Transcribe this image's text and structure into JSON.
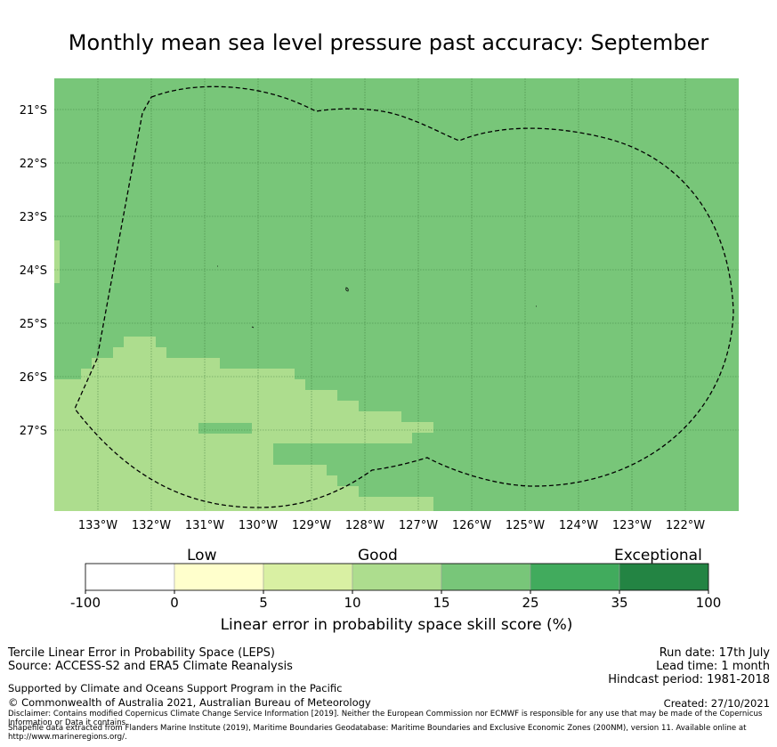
{
  "title": "Monthly mean sea level pressure past accuracy: September",
  "map": {
    "lat_labels": [
      "21°S",
      "22°S",
      "23°S",
      "24°S",
      "25°S",
      "26°S",
      "27°S"
    ],
    "lon_labels": [
      "133°W",
      "132°W",
      "131°W",
      "130°W",
      "129°W",
      "128°W",
      "127°W",
      "126°W",
      "125°W",
      "124°W",
      "123°W",
      "122°W"
    ],
    "base_color": "#78c679",
    "good_color": "#addd8e",
    "boundary_style": "dashed"
  },
  "colorbar": {
    "categories": [
      "Low",
      "Good",
      "Exceptional"
    ],
    "ticks": [
      "-100",
      "0",
      "5",
      "10",
      "15",
      "25",
      "35",
      "100"
    ],
    "colors": [
      "#ffffff",
      "#ffffcc",
      "#d9f0a3",
      "#addd8e",
      "#78c679",
      "#41ab5d",
      "#238443"
    ],
    "label": "Linear error in probability space skill score (%)"
  },
  "footer": {
    "method": "Tercile Linear Error in Probability Space (LEPS)",
    "source": "Source: ACCESS-S2 and ERA5 Climate Reanalysis",
    "support": "Supported by Climate and Oceans Support Program in the Pacific",
    "copyright": "© Commonwealth of Australia 2021, Australian Bureau of Meteorology",
    "disclaimer": "Disclaimer: Contains modified Copernicus Climate Change Service Information [2019]. Neither the European Commission nor ECMWF is responsible for any use that may be made of the Copernicus Information or Data it contains.",
    "shapefile": "Shapefile data extracted from Flanders Marine Institute (2019), Maritime Boundaries Geodatabase: Maritime Boundaries and Exclusive Economic Zones (200NM), version 11. Available online at http://www.marineregions.org/.",
    "run_date": "Run date: 17th July",
    "lead_time": "Lead time: 1 month",
    "hindcast": "Hindcast period: 1981-2018",
    "created": "Created: 27/10/2021"
  }
}
